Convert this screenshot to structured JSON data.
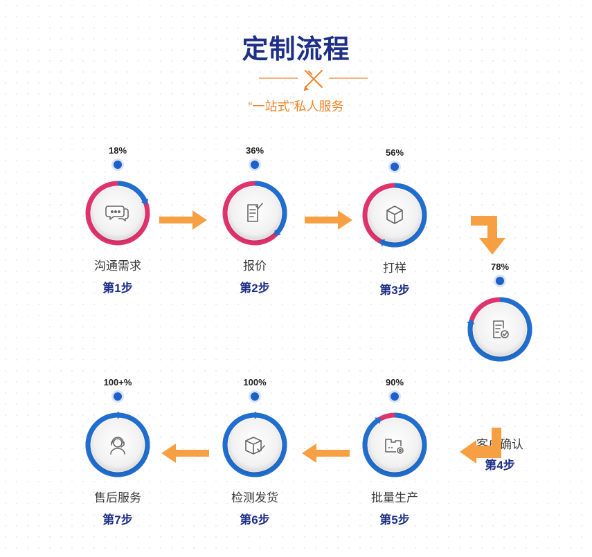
{
  "header": {
    "title": "定制流程",
    "subtitle": "“一站式”私人服务",
    "accent_color": "#f0842a",
    "title_color": "#1d2f86"
  },
  "colors": {
    "progress": "#1e6fd0",
    "remaining": "#e0336e",
    "arrow": "#f7a043"
  },
  "steps": [
    {
      "percent": "18%",
      "progress": 0.18,
      "label": "沟通需求",
      "step": "第1步",
      "icon": "chat-bubbles-icon"
    },
    {
      "percent": "36%",
      "progress": 0.36,
      "label": "报价",
      "step": "第2步",
      "icon": "document-check-icon"
    },
    {
      "percent": "56%",
      "progress": 0.56,
      "label": "打样",
      "step": "第3步",
      "icon": "cube-icon"
    },
    {
      "percent": "78%",
      "progress": 0.78,
      "label": "客户确认",
      "step": "第4步",
      "icon": "confirm-document-icon"
    },
    {
      "percent": "90%",
      "progress": 0.9,
      "label": "批量生产",
      "step": "第5步",
      "icon": "factory-gear-icon"
    },
    {
      "percent": "100%",
      "progress": 1.0,
      "label": "检测发货",
      "step": "第6步",
      "icon": "package-check-icon"
    },
    {
      "percent": "100+%",
      "progress": 1.0,
      "label": "售后服务",
      "step": "第7步",
      "icon": "customer-service-icon"
    }
  ]
}
